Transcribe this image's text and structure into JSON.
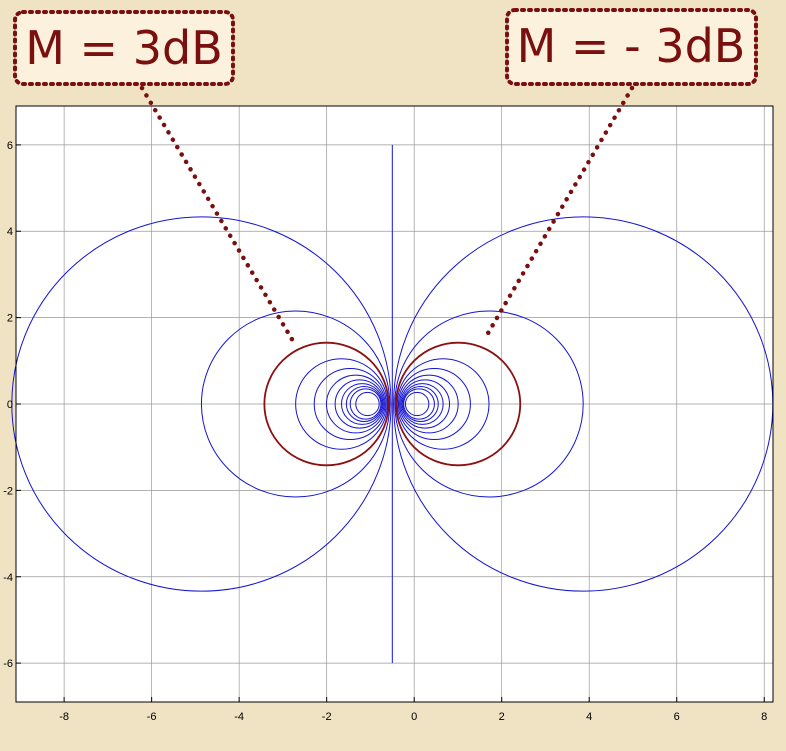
{
  "chart_data": {
    "type": "line",
    "title": "",
    "xlabel": "",
    "ylabel": "",
    "xlim": [
      -9.1,
      8.2
    ],
    "ylim": [
      -6.9,
      6.9
    ],
    "xticks": [
      -8,
      -6,
      -4,
      -2,
      0,
      2,
      4,
      6,
      8
    ],
    "yticks": [
      -6,
      -4,
      -2,
      0,
      2,
      4,
      6
    ],
    "grid": true,
    "contour_levels_M_dB": [
      -12,
      -10,
      -9,
      -8,
      -7,
      -6,
      -5,
      -4,
      -3,
      -2,
      -1,
      1,
      2,
      3,
      4,
      5,
      6,
      7,
      8,
      9,
      10,
      12
    ],
    "highlighted_levels_M_dB": [
      3,
      -3
    ],
    "asymptote": {
      "x": -0.5,
      "y_range": [
        -6,
        6
      ]
    },
    "series_colors": {
      "contours": "#1414d2",
      "highlighted": "#8b1010"
    }
  },
  "annotations": [
    {
      "label": "M = 3dB",
      "target_level_dB": 3
    },
    {
      "label": "M = - 3dB",
      "target_level_dB": -3
    }
  ]
}
